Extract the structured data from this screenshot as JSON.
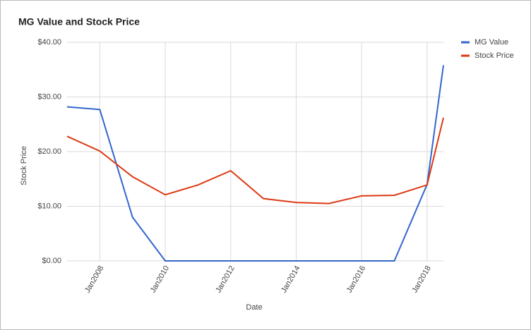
{
  "chart_data": {
    "type": "line",
    "title": "MG Value and Stock Price",
    "x_label": "Date",
    "y_label": "Stock Price",
    "x": [
      "2007-01",
      "2008-01",
      "2009-01",
      "2010-01",
      "2011-01",
      "2012-01",
      "2013-01",
      "2014-01",
      "2015-01",
      "2016-01",
      "2017-01",
      "2018-01",
      "2018-07"
    ],
    "series": [
      {
        "name": "MG Value",
        "color": "#3366cc",
        "values": [
          28.2,
          27.7,
          8.0,
          0,
          0,
          0,
          0,
          0,
          0,
          0,
          0,
          14.0,
          35.8
        ]
      },
      {
        "name": "Stock Price",
        "color": "#dc3912",
        "values": [
          22.8,
          20.1,
          15.4,
          12.1,
          13.9,
          16.5,
          11.4,
          10.7,
          10.5,
          11.9,
          12.0,
          13.9,
          26.2
        ]
      }
    ],
    "xlim": [
      "2007-01",
      "2018-07"
    ],
    "xticks": [
      {
        "value": "2008-01",
        "label": "Jan2008"
      },
      {
        "value": "2010-01",
        "label": "Jan2010"
      },
      {
        "value": "2012-01",
        "label": "Jan2012"
      },
      {
        "value": "2014-01",
        "label": "Jan2014"
      },
      {
        "value": "2016-01",
        "label": "Jan2016"
      },
      {
        "value": "2018-01",
        "label": "Jan2018"
      }
    ],
    "ylim": [
      0,
      40
    ],
    "yticks": [
      {
        "value": 0,
        "label": "$0.00"
      },
      {
        "value": 10,
        "label": "$10.00"
      },
      {
        "value": 20,
        "label": "$20.00"
      },
      {
        "value": 30,
        "label": "$30.00"
      },
      {
        "value": 40,
        "label": "$40.00"
      }
    ],
    "grid": true,
    "legend": "right"
  }
}
